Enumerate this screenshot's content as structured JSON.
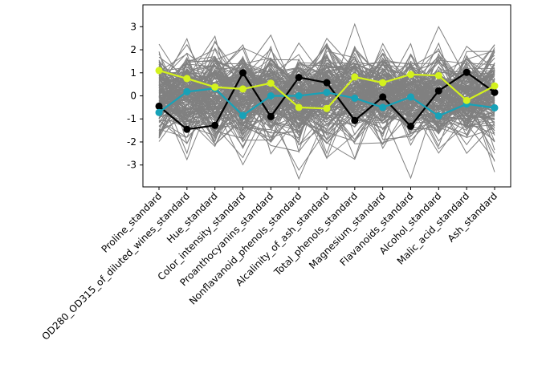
{
  "chart_data": {
    "type": "line",
    "title": "",
    "xlabel": "",
    "ylabel": "",
    "categories": [
      "Proline_standard",
      "OD280_OD315_of_diluted_wines_standard",
      "Hue_standard",
      "Color_intensity_standard",
      "Proanthocyanins_standard",
      "Nonflavanoid_phenols_standard",
      "Alcalinity_of_ash_standard",
      "Total_phenols_standard",
      "Magnesium_standard",
      "Flavanoids_standard",
      "Alcohol_standard",
      "Malic_acid_standard",
      "Ash_standard"
    ],
    "ylim": [
      -3.95,
      3.95
    ],
    "yticks": [
      -3,
      -2,
      -1,
      0,
      1,
      2,
      3
    ],
    "ytick_labels": [
      "-3",
      "-2",
      "-1",
      "0",
      "1",
      "2",
      "3"
    ],
    "grid": false,
    "legend": "none",
    "background_series_color": "#808080",
    "background_series_count": 178,
    "background_series_note": "gray lines: individual observations across all standardized features",
    "series": [
      {
        "color": "#000000",
        "marker": "circle",
        "values": [
          -0.45,
          -1.45,
          -1.28,
          1.0,
          -0.9,
          0.8,
          0.57,
          -1.07,
          -0.05,
          -1.32,
          0.22,
          1.02,
          0.15
        ]
      },
      {
        "color": "#17a2b8",
        "marker": "circle",
        "values": [
          -0.72,
          0.18,
          0.32,
          -0.85,
          0.0,
          0.0,
          0.15,
          -0.1,
          -0.5,
          -0.05,
          -0.87,
          -0.35,
          -0.52
        ]
      },
      {
        "color": "#d4f21d",
        "marker": "circle",
        "values": [
          1.1,
          0.75,
          0.38,
          0.3,
          0.55,
          -0.5,
          -0.55,
          0.82,
          0.57,
          0.93,
          0.88,
          -0.2,
          0.43
        ]
      }
    ]
  }
}
